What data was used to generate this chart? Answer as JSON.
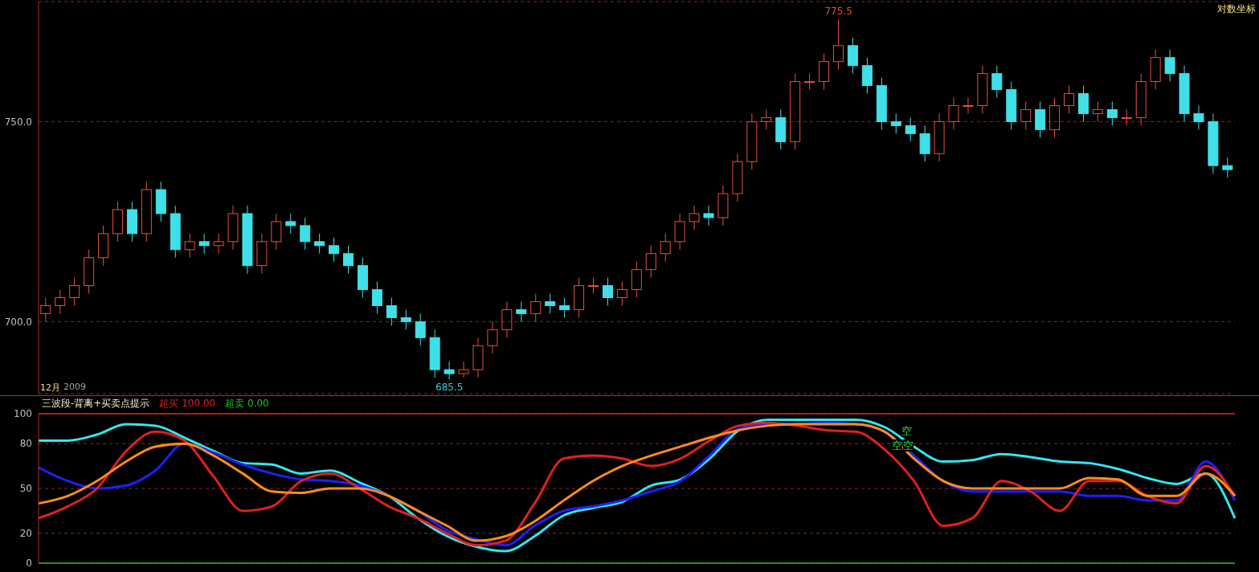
{
  "chart_data": [
    {
      "type": "candlestick",
      "categories": [
        null,
        null,
        null,
        null,
        null,
        null,
        null,
        null,
        null,
        null,
        null,
        null,
        null,
        null,
        null,
        null,
        null,
        null,
        null,
        null,
        null,
        null,
        null,
        null,
        null,
        null,
        null,
        null,
        null,
        null,
        null,
        null,
        null,
        null,
        null,
        null,
        null,
        null,
        null,
        null,
        null,
        null,
        null,
        null,
        null,
        null,
        null,
        null,
        null,
        null,
        null,
        null,
        null,
        null,
        null,
        null,
        null,
        null,
        null,
        null,
        null,
        null,
        null,
        null,
        null,
        null,
        null,
        null,
        null,
        null,
        null,
        null,
        null,
        null,
        null,
        null,
        null,
        null,
        null,
        null,
        null,
        null,
        null
      ],
      "ohlc": [
        [
          702,
          706,
          700,
          704
        ],
        [
          704,
          708,
          702,
          706
        ],
        [
          706,
          711,
          704,
          709
        ],
        [
          709,
          718,
          707,
          716
        ],
        [
          716,
          724,
          714,
          722
        ],
        [
          722,
          730,
          720,
          728
        ],
        [
          728,
          730,
          720,
          722
        ],
        [
          722,
          735,
          720,
          733
        ],
        [
          733,
          735,
          725,
          727
        ],
        [
          727,
          729,
          716,
          718
        ],
        [
          718,
          722,
          716,
          720
        ],
        [
          720,
          722,
          717,
          719
        ],
        [
          719,
          722,
          717,
          720
        ],
        [
          720,
          729,
          718,
          727
        ],
        [
          727,
          729,
          712,
          714
        ],
        [
          714,
          722,
          712,
          720
        ],
        [
          720,
          727,
          718,
          725
        ],
        [
          725,
          727,
          722,
          724
        ],
        [
          724,
          726,
          718,
          720
        ],
        [
          720,
          722,
          717,
          719
        ],
        [
          719,
          721,
          715,
          717
        ],
        [
          717,
          719,
          712,
          714
        ],
        [
          714,
          716,
          706,
          708
        ],
        [
          708,
          710,
          702,
          704
        ],
        [
          704,
          706,
          699,
          701
        ],
        [
          701,
          703,
          698,
          700
        ],
        [
          700,
          702,
          694,
          696
        ],
        [
          696,
          698,
          686,
          688
        ],
        [
          688,
          690,
          685.5,
          687
        ],
        [
          687,
          690,
          686,
          688
        ],
        [
          688,
          696,
          686,
          694
        ],
        [
          694,
          700,
          692,
          698
        ],
        [
          698,
          705,
          696,
          703
        ],
        [
          703,
          705,
          700,
          702
        ],
        [
          702,
          707,
          700,
          705
        ],
        [
          705,
          707,
          702,
          704
        ],
        [
          704,
          706,
          701,
          703
        ],
        [
          703,
          711,
          701,
          709
        ],
        [
          709,
          711,
          707,
          709
        ],
        [
          709,
          711,
          704,
          706
        ],
        [
          706,
          710,
          704,
          708
        ],
        [
          708,
          715,
          706,
          713
        ],
        [
          713,
          719,
          711,
          717
        ],
        [
          717,
          722,
          715,
          720
        ],
        [
          720,
          727,
          718,
          725
        ],
        [
          725,
          729,
          723,
          727
        ],
        [
          727,
          729,
          724,
          726
        ],
        [
          726,
          734,
          724,
          732
        ],
        [
          732,
          742,
          730,
          740
        ],
        [
          740,
          752,
          738,
          750
        ],
        [
          750,
          753,
          748,
          751
        ],
        [
          751,
          753,
          743,
          745
        ],
        [
          745,
          762,
          743,
          760
        ],
        [
          760,
          762,
          758,
          760
        ],
        [
          760,
          767,
          758,
          765
        ],
        [
          765,
          775.5,
          763,
          769
        ],
        [
          769,
          771,
          762,
          764
        ],
        [
          764,
          766,
          757,
          759
        ],
        [
          759,
          761,
          748,
          750
        ],
        [
          750,
          752,
          747,
          749
        ],
        [
          749,
          751,
          745,
          747
        ],
        [
          747,
          749,
          740,
          742
        ],
        [
          742,
          752,
          740,
          750
        ],
        [
          750,
          756,
          748,
          754
        ],
        [
          754,
          756,
          752,
          754
        ],
        [
          754,
          764,
          752,
          762
        ],
        [
          762,
          764,
          756,
          758
        ],
        [
          758,
          760,
          748,
          750
        ],
        [
          750,
          755,
          748,
          753
        ],
        [
          753,
          755,
          746,
          748
        ],
        [
          748,
          756,
          746,
          754
        ],
        [
          754,
          759,
          752,
          757
        ],
        [
          757,
          759,
          750,
          752
        ],
        [
          752,
          755,
          750,
          753
        ],
        [
          753,
          755,
          749,
          751
        ],
        [
          751,
          753,
          749,
          751
        ],
        [
          751,
          762,
          749,
          760
        ],
        [
          760,
          768,
          758,
          766
        ],
        [
          766,
          768,
          760,
          762
        ],
        [
          762,
          764,
          750,
          752
        ],
        [
          752,
          754,
          748,
          750
        ],
        [
          750,
          752,
          737,
          739
        ],
        [
          739,
          741,
          736,
          738
        ]
      ],
      "colors": [
        "#e8503c",
        "#e8503c",
        "#e8503c",
        "#e8503c",
        "#e8503c",
        "#e8503c",
        "#40e0e8",
        "#e8503c",
        "#40e0e8",
        "#40e0e8",
        "#e8503c",
        "#40e0e8",
        "#e8503c",
        "#e8503c",
        "#40e0e8",
        "#e8503c",
        "#e8503c",
        "#40e0e8",
        "#40e0e8",
        "#40e0e8",
        "#40e0e8",
        "#40e0e8",
        "#40e0e8",
        "#40e0e8",
        "#40e0e8",
        "#40e0e8",
        "#40e0e8",
        "#40e0e8",
        "#40e0e8",
        "#e8503c",
        "#e8503c",
        "#e8503c",
        "#e8503c",
        "#40e0e8",
        "#e8503c",
        "#40e0e8",
        "#40e0e8",
        "#e8503c",
        "#e8503c",
        "#40e0e8",
        "#e8503c",
        "#e8503c",
        "#e8503c",
        "#e8503c",
        "#e8503c",
        "#e8503c",
        "#40e0e8",
        "#e8503c",
        "#e8503c",
        "#e8503c",
        "#e8503c",
        "#40e0e8",
        "#e8503c",
        "#e8503c",
        "#e8503c",
        "#e8503c",
        "#40e0e8",
        "#40e0e8",
        "#40e0e8",
        "#40e0e8",
        "#40e0e8",
        "#40e0e8",
        "#e8503c",
        "#e8503c",
        "#e8503c",
        "#e8503c",
        "#40e0e8",
        "#40e0e8",
        "#e8503c",
        "#40e0e8",
        "#e8503c",
        "#e8503c",
        "#40e0e8",
        "#e8503c",
        "#40e0e8",
        "#e8503c",
        "#e8503c",
        "#e8503c",
        "#40e0e8",
        "#40e0e8",
        "#40e0e8",
        "#40e0e8",
        "#40e0e8"
      ],
      "ylim": [
        682,
        780
      ],
      "yticks": [
        {
          "value": 700,
          "label": "700.0"
        },
        {
          "value": 750,
          "label": "750.0"
        }
      ],
      "grid": "y",
      "annotations": [
        {
          "text": "775.5",
          "y": 775.5
        },
        {
          "text": "685.5",
          "y": 685.5
        },
        "对数坐标",
        "12月",
        "2009"
      ]
    },
    {
      "type": "line",
      "title": "三波段-背离+买卖点提示",
      "categories": [
        null,
        null,
        null,
        null,
        null,
        null,
        null,
        null,
        null,
        null,
        null,
        null,
        null,
        null,
        null,
        null,
        null,
        null,
        null,
        null,
        null,
        null,
        null,
        null,
        null,
        null,
        null,
        null,
        null,
        null,
        null,
        null,
        null,
        null,
        null,
        null,
        null,
        null,
        null,
        null,
        null,
        null
      ],
      "series": [
        {
          "color": "#33e6f0",
          "values": [
            82,
            82,
            86,
            93,
            92,
            84,
            75,
            67,
            66,
            60,
            62,
            54,
            45,
            30,
            18,
            11,
            8,
            18,
            32,
            37,
            41,
            52,
            56,
            70,
            89,
            96,
            96,
            96,
            96,
            91,
            78,
            68,
            69,
            73,
            71,
            68,
            67,
            63,
            57,
            53,
            60,
            30
          ]
        },
        {
          "color": "#1f1fff",
          "values": [
            64,
            55,
            50,
            52,
            62,
            80,
            74,
            66,
            60,
            56,
            55,
            52,
            45,
            35,
            22,
            16,
            12,
            25,
            35,
            38,
            42,
            48,
            55,
            72,
            90,
            93,
            93,
            94,
            93,
            88,
            72,
            55,
            48,
            48,
            48,
            48,
            45,
            45,
            42,
            42,
            68,
            42
          ]
        },
        {
          "color": "#e02020",
          "values": [
            30,
            38,
            50,
            75,
            88,
            82,
            58,
            35,
            38,
            55,
            60,
            50,
            38,
            30,
            20,
            12,
            15,
            40,
            70,
            72,
            70,
            65,
            70,
            82,
            92,
            94,
            92,
            89,
            88,
            76,
            55,
            25,
            30,
            55,
            48,
            35,
            55,
            55,
            45,
            40,
            65,
            45
          ]
        },
        {
          "color": "#ff8c1a",
          "values": [
            40,
            45,
            55,
            68,
            78,
            80,
            72,
            60,
            48,
            47,
            50,
            50,
            45,
            35,
            25,
            15,
            18,
            28,
            42,
            55,
            65,
            72,
            78,
            84,
            89,
            92,
            93,
            93,
            93,
            88,
            70,
            55,
            50,
            50,
            50,
            50,
            57,
            56,
            45,
            45,
            60,
            45
          ]
        }
      ],
      "ylim": [
        0,
        100
      ],
      "yticks": [
        0,
        20,
        50,
        80,
        100
      ],
      "grid": "y",
      "ref_lines": [
        {
          "axis": "y",
          "value": 100,
          "label": "超买 100.00",
          "color": "#e02020"
        },
        {
          "axis": "y",
          "value": 0,
          "label": "超卖 0.00",
          "color": "#20c020"
        }
      ],
      "annotations": [
        "空",
        "空",
        "空"
      ]
    }
  ]
}
